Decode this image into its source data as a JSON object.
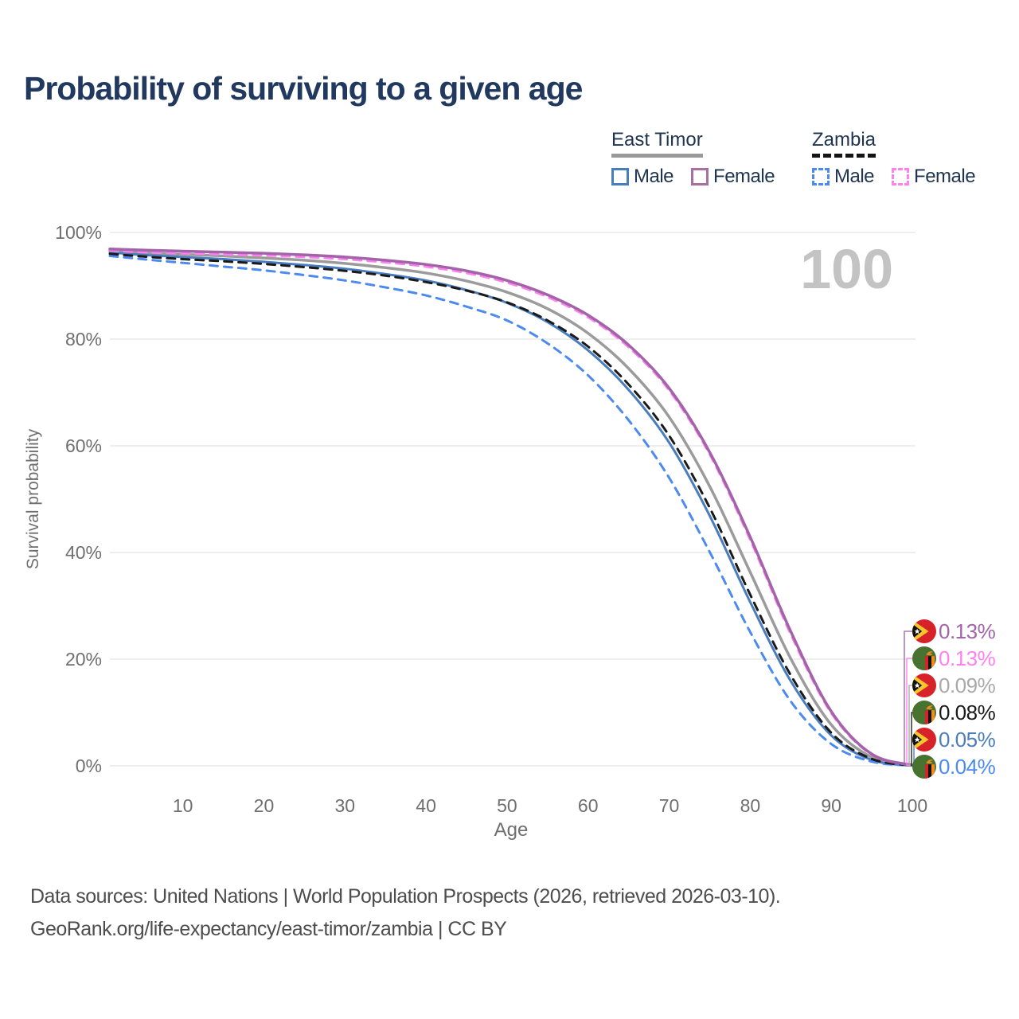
{
  "page": {
    "title": "Probability of surviving to a given age",
    "watermark": "100"
  },
  "legend": {
    "groups": [
      {
        "name": "East Timor",
        "line_style": "solid",
        "rule_color": "#9a9a9a",
        "items": [
          {
            "label": "Male",
            "color": "#4a7dbd",
            "style": "solid"
          },
          {
            "label": "Female",
            "color": "#a86fa5",
            "style": "solid"
          }
        ]
      },
      {
        "name": "Zambia",
        "line_style": "dashed",
        "rule_color": "#151515",
        "items": [
          {
            "label": "Male",
            "color": "#4d8af0",
            "style": "dashed"
          },
          {
            "label": "Female",
            "color": "#ff80f0",
            "style": "dashed"
          }
        ]
      }
    ]
  },
  "chart_data": {
    "type": "line",
    "title": "Probability of surviving to a given age",
    "xlabel": "Age",
    "ylabel": "Survival probability",
    "xlim": [
      1,
      100
    ],
    "ylim": [
      0,
      100
    ],
    "x_ticks": [
      10,
      20,
      30,
      40,
      50,
      60,
      70,
      80,
      90,
      100
    ],
    "y_ticks": [
      "0%",
      "20%",
      "40%",
      "60%",
      "80%",
      "100%"
    ],
    "grid": "horizontal",
    "legend_position": "top-right",
    "watermark": "100",
    "ages": [
      1,
      5,
      10,
      15,
      20,
      25,
      30,
      35,
      40,
      45,
      50,
      55,
      60,
      65,
      70,
      75,
      80,
      85,
      90,
      95,
      100
    ],
    "series": [
      {
        "name": "East Timor Female",
        "country": "East Timor",
        "sex": "Female",
        "color": "#a263a8",
        "dash": "solid",
        "width": 3.5,
        "end_label": "0.13%",
        "values": [
          96.9,
          96.7,
          96.5,
          96.3,
          96.1,
          95.8,
          95.4,
          94.8,
          94.0,
          92.8,
          91.0,
          88.3,
          84.5,
          78.9,
          70.8,
          58.8,
          42.9,
          25.2,
          10.2,
          2.2,
          0.13
        ]
      },
      {
        "name": "Zambia Female",
        "country": "Zambia",
        "sex": "Female",
        "color": "#ff80f0",
        "dash": "dashed",
        "width": 3,
        "end_label": "0.13%",
        "values": [
          96.6,
          96.3,
          96.1,
          95.9,
          95.7,
          95.4,
          95.0,
          94.4,
          93.6,
          92.4,
          90.6,
          87.9,
          84.1,
          78.5,
          70.4,
          58.4,
          42.4,
          24.7,
          9.9,
          2.1,
          0.13
        ]
      },
      {
        "name": "East Timor",
        "country": "East Timor",
        "sex": "All",
        "color": "#9b9b9b",
        "dash": "solid",
        "width": 3.5,
        "end_label": "0.09%",
        "values": [
          96.6,
          96.2,
          95.9,
          95.6,
          95.2,
          94.8,
          94.2,
          93.4,
          92.4,
          90.9,
          88.8,
          85.7,
          81.1,
          74.5,
          65.4,
          52.4,
          36.3,
          20.1,
          7.7,
          1.6,
          0.09
        ]
      },
      {
        "name": "Zambia",
        "country": "Zambia",
        "sex": "All",
        "color": "#1a1a1a",
        "dash": "dashed",
        "width": 3,
        "end_label": "0.08%",
        "values": [
          96.0,
          95.5,
          95.0,
          94.6,
          94.1,
          93.5,
          92.8,
          91.9,
          90.7,
          89.1,
          86.9,
          83.5,
          78.6,
          71.5,
          61.9,
          48.4,
          32.1,
          17.0,
          6.2,
          1.3,
          0.08
        ]
      },
      {
        "name": "East Timor Male",
        "country": "East Timor",
        "sex": "Male",
        "color": "#4a7dbd",
        "dash": "solid",
        "width": 3,
        "end_label": "0.05%",
        "values": [
          96.3,
          95.8,
          95.4,
          95.0,
          94.5,
          93.9,
          93.2,
          92.2,
          91.0,
          89.2,
          86.8,
          83.2,
          77.9,
          70.5,
          60.6,
          46.9,
          30.7,
          15.9,
          5.7,
          1.1,
          0.05
        ]
      },
      {
        "name": "Zambia Male",
        "country": "Zambia",
        "sex": "Male",
        "color": "#4d8af0",
        "dash": "dashed",
        "width": 3,
        "end_label": "0.04%",
        "values": [
          95.6,
          95.0,
          94.3,
          93.6,
          92.9,
          92.0,
          91.0,
          89.7,
          88.2,
          86.1,
          83.5,
          79.2,
          73.2,
          64.8,
          54.0,
          40.1,
          25.1,
          12.1,
          4.1,
          0.8,
          0.04
        ]
      }
    ],
    "endpoints": [
      {
        "label": "0.13%",
        "color": "#a263a8",
        "flag": "east-timor"
      },
      {
        "label": "0.13%",
        "color": "#ff80f0",
        "flag": "zambia"
      },
      {
        "label": "0.09%",
        "color": "#a9a9a9",
        "flag": "east-timor"
      },
      {
        "label": "0.08%",
        "color": "#1a1a1a",
        "flag": "zambia"
      },
      {
        "label": "0.05%",
        "color": "#4a7dbd",
        "flag": "east-timor"
      },
      {
        "label": "0.04%",
        "color": "#4d8af0",
        "flag": "zambia"
      }
    ]
  },
  "footer": {
    "line1": "Data sources: United Nations | World Population Prospects (2026, retrieved 2026-03-10).",
    "line2": "GeoRank.org/life-expectancy/east-timor/zambia | CC BY"
  }
}
